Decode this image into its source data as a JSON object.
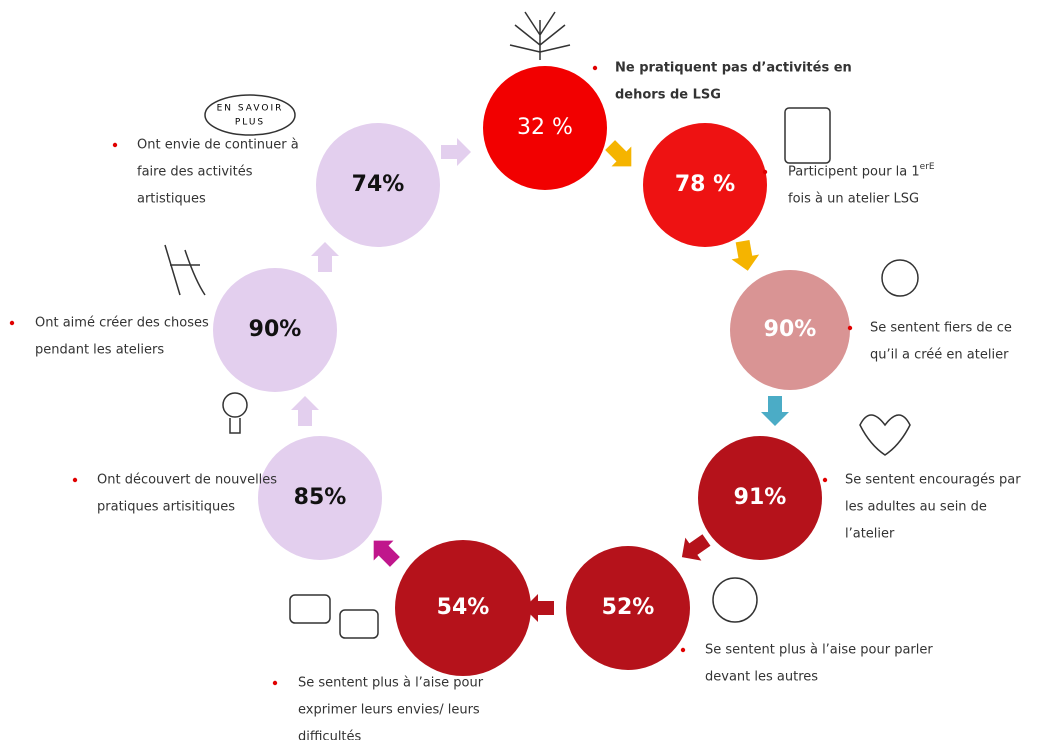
{
  "nodes": [
    {
      "label": "32 %",
      "lines": [
        "Ne pratiquent pas d’activités en",
        "dehors de LSG"
      ]
    },
    {
      "label": "78 %",
      "lines": [
        "Participent pour la 1",
        "fois à un atelier LSG"
      ],
      "sup": "erE"
    },
    {
      "label": "90%",
      "lines": [
        "Se sentent fiers de ce",
        "qu’il a créé en atelier"
      ]
    },
    {
      "label": "91%",
      "lines": [
        "Se sentent encouragés par",
        "les adultes au sein de",
        "l’atelier"
      ]
    },
    {
      "label": "52%",
      "lines": [
        "Se sentent plus à l’aise pour parler",
        "devant les autres"
      ]
    },
    {
      "label": "54%",
      "lines": [
        "Se sentent plus à l’aise pour",
        "exprimer leurs envies/ leurs",
        "difficultés"
      ]
    },
    {
      "label": "85%",
      "lines": [
        "Ont découvert de nouvelles",
        "pratiques artisitiques"
      ]
    },
    {
      "label": "90%",
      "lines": [
        "Ont aimé créer des choses",
        "pendant les ateliers"
      ]
    },
    {
      "label": "74%",
      "lines": [
        "Ont envie de continuer à",
        "faire des activités",
        "artistiques"
      ]
    }
  ],
  "badge": {
    "lines": [
      "EN SAVOIR",
      "PLUS"
    ]
  }
}
